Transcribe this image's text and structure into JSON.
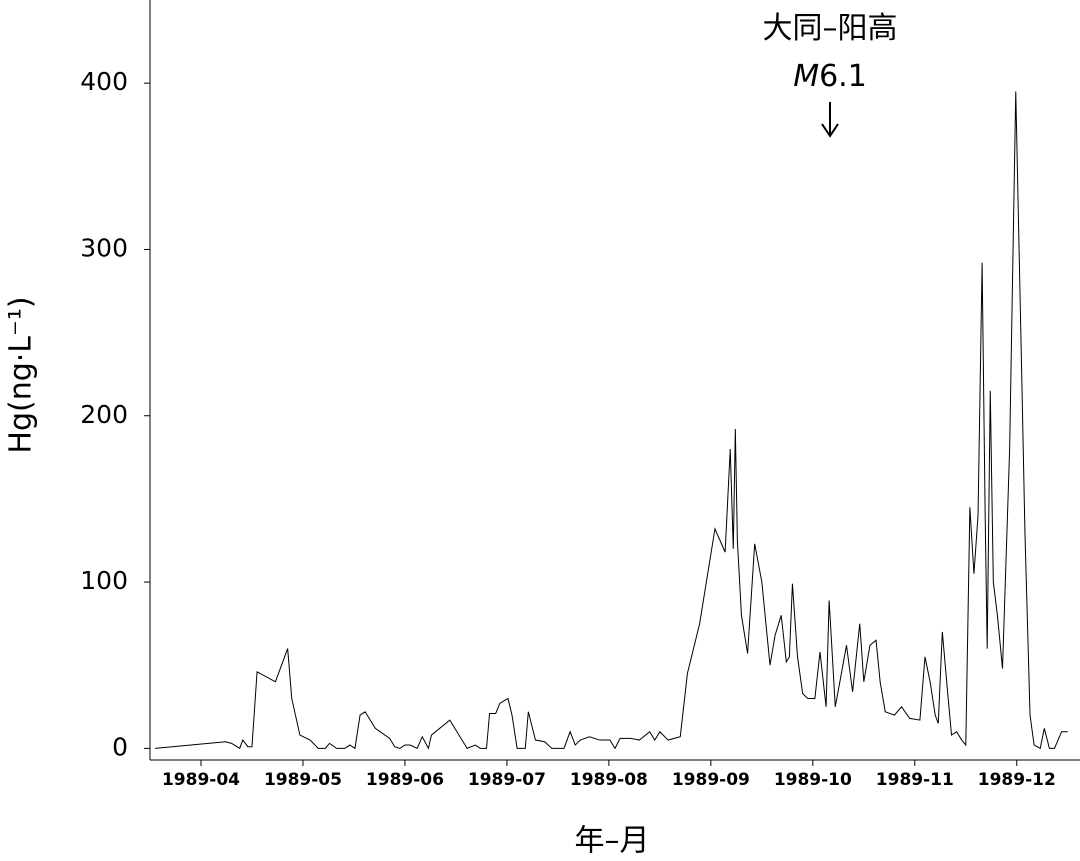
{
  "chart_data": {
    "type": "line",
    "y_label": "Hg(ng·L⁻¹)",
    "x_label": "年–月",
    "annotation": "大同–阳高",
    "annotation_magnitude": "M6.1",
    "x": [
      4.05,
      4.74,
      4.8,
      4.88,
      4.91,
      4.96,
      5.0,
      5.05,
      5.23,
      5.35,
      5.39,
      5.47,
      5.57,
      5.65,
      5.72,
      5.76,
      5.83,
      5.91,
      5.96,
      6.01,
      6.06,
      6.11,
      6.21,
      6.35,
      6.4,
      6.45,
      6.5,
      6.55,
      6.62,
      6.67,
      6.73,
      6.76,
      6.94,
      7.04,
      7.11,
      7.19,
      7.24,
      7.3,
      7.33,
      7.39,
      7.43,
      7.51,
      7.55,
      7.6,
      7.68,
      7.71,
      7.78,
      7.87,
      7.94,
      7.99,
      8.06,
      8.12,
      8.17,
      8.22,
      8.31,
      8.41,
      8.51,
      8.56,
      8.61,
      8.71,
      8.8,
      8.9,
      8.95,
      9.0,
      9.08,
      9.2,
      9.27,
      9.39,
      9.54,
      9.64,
      9.69,
      9.72,
      9.74,
      9.76,
      9.8,
      9.86,
      9.93,
      10.0,
      10.08,
      10.13,
      10.19,
      10.24,
      10.27,
      10.3,
      10.35,
      10.4,
      10.45,
      10.52,
      10.57,
      10.63,
      10.66,
      10.72,
      10.78,
      10.83,
      10.89,
      10.96,
      11.0,
      11.06,
      11.12,
      11.16,
      11.21,
      11.3,
      11.37,
      11.45,
      11.55,
      11.6,
      11.65,
      11.7,
      11.73,
      11.77,
      11.82,
      11.86,
      11.91,
      11.96,
      12.0,
      12.04,
      12.08,
      12.12,
      12.16,
      12.19,
      12.21,
      12.24,
      12.27,
      12.31,
      12.36,
      12.43,
      12.49,
      12.55,
      12.58,
      12.63,
      12.67,
      12.73,
      12.77,
      12.82,
      12.87,
      12.94,
      13.0
    ],
    "series": [
      {
        "name": "Hg",
        "color": "#000000",
        "values": [
          0,
          4,
          3,
          0,
          5,
          1,
          1,
          46,
          40,
          60,
          30,
          8,
          5,
          0,
          0,
          3,
          0,
          0,
          2,
          0,
          20,
          22,
          12,
          6,
          1,
          0,
          2,
          2,
          0,
          7,
          0,
          8,
          17,
          7,
          0,
          2,
          0,
          0,
          21,
          21,
          27,
          30,
          20,
          0,
          0,
          22,
          5,
          4,
          0,
          0,
          0,
          10,
          2,
          5,
          7,
          5,
          5,
          0,
          6,
          6,
          5,
          10,
          5,
          10,
          5,
          7,
          45,
          75,
          132,
          118,
          180,
          120,
          192,
          125,
          80,
          57,
          123,
          100,
          50,
          68,
          80,
          52,
          55,
          99,
          55,
          33,
          30,
          30,
          58,
          25,
          89,
          25,
          45,
          62,
          34,
          75,
          40,
          62,
          65,
          40,
          22,
          20,
          25,
          18,
          17,
          55,
          40,
          20,
          15,
          70,
          35,
          8,
          10,
          5,
          2,
          145,
          105,
          140,
          292,
          140,
          60,
          215,
          100,
          80,
          48,
          180,
          395,
          220,
          130,
          20,
          2,
          0,
          12,
          0,
          0,
          10,
          10
        ]
      }
    ],
    "xlim": [
      4,
      13.12
    ],
    "xticks": [
      {
        "value": 4.5,
        "label": "1989-04"
      },
      {
        "value": 5.5,
        "label": "1989-05"
      },
      {
        "value": 6.5,
        "label": "1989-06"
      },
      {
        "value": 7.5,
        "label": "1989-07"
      },
      {
        "value": 8.5,
        "label": "1989-08"
      },
      {
        "value": 9.5,
        "label": "1989-09"
      },
      {
        "value": 10.5,
        "label": "1989-10"
      },
      {
        "value": 11.5,
        "label": "1989-11"
      },
      {
        "value": 12.5,
        "label": "1989-12"
      }
    ],
    "ylim": [
      -7,
      450
    ],
    "yticks": [
      0,
      100,
      200,
      300,
      400
    ],
    "grid": false
  }
}
